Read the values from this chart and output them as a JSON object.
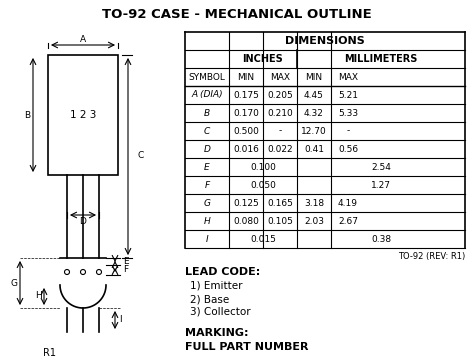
{
  "title": "TO-92 CASE - MECHANICAL OUTLINE",
  "table_title": "DIMENSIONS",
  "col_headers": [
    "SYMBOL",
    "MIN",
    "MAX",
    "MIN",
    "MAX"
  ],
  "rows": [
    [
      "A (DIA)",
      "0.175",
      "0.205",
      "4.45",
      "5.21"
    ],
    [
      "B",
      "0.170",
      "0.210",
      "4.32",
      "5.33"
    ],
    [
      "C",
      "0.500",
      "-",
      "12.70",
      "-"
    ],
    [
      "D",
      "0.016",
      "0.022",
      "0.41",
      "0.56"
    ],
    [
      "E",
      "0.100",
      "",
      "2.54",
      ""
    ],
    [
      "F",
      "0.050",
      "",
      "1.27",
      ""
    ],
    [
      "G",
      "0.125",
      "0.165",
      "3.18",
      "4.19"
    ],
    [
      "H",
      "0.080",
      "0.105",
      "2.03",
      "2.67"
    ],
    [
      "I",
      "0.015",
      "",
      "0.38",
      ""
    ]
  ],
  "note": "TO-92 (REV: R1)",
  "lead_code_title": "LEAD CODE:",
  "lead_codes": [
    "1) Emitter",
    "2) Base",
    "3) Collector"
  ],
  "marking_title": "MARKING:",
  "marking_value": "FULL PART NUMBER",
  "r1_label": "R1",
  "bg_color": "#ffffff",
  "text_color": "#000000"
}
